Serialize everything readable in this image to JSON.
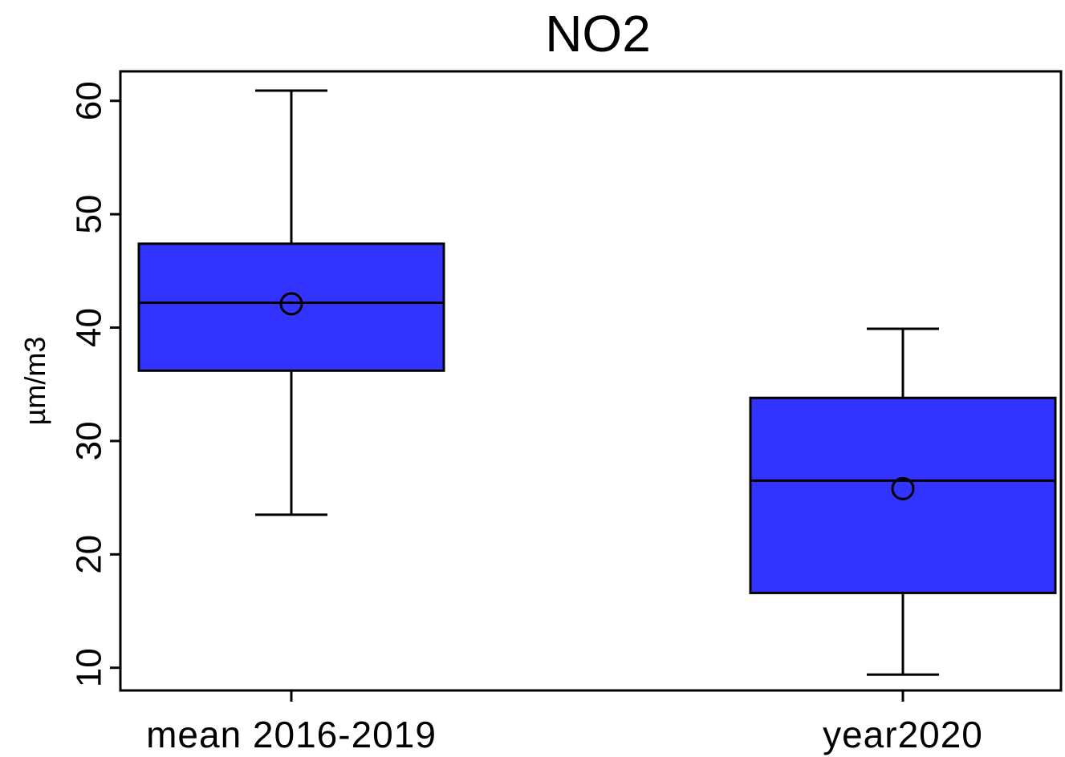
{
  "chart_data": {
    "type": "boxplot",
    "title": "NO2",
    "xlabel": "",
    "ylabel": "µm/m3",
    "categories": [
      "mean 2016-2019",
      "year2020"
    ],
    "y_ticks": [
      10,
      20,
      30,
      40,
      50,
      60
    ],
    "ylim": [
      8,
      62.6
    ],
    "box_fill": "#3333ff",
    "boxes": [
      {
        "category": "mean 2016-2019",
        "whisker_low": 23.5,
        "q1": 36.2,
        "median": 42.2,
        "q3": 47.4,
        "whisker_high": 60.9,
        "mean": 42.1
      },
      {
        "category": "year2020",
        "whisker_low": 9.4,
        "q1": 16.6,
        "median": 26.5,
        "q3": 33.8,
        "whisker_high": 39.9,
        "mean": 25.8
      }
    ]
  }
}
